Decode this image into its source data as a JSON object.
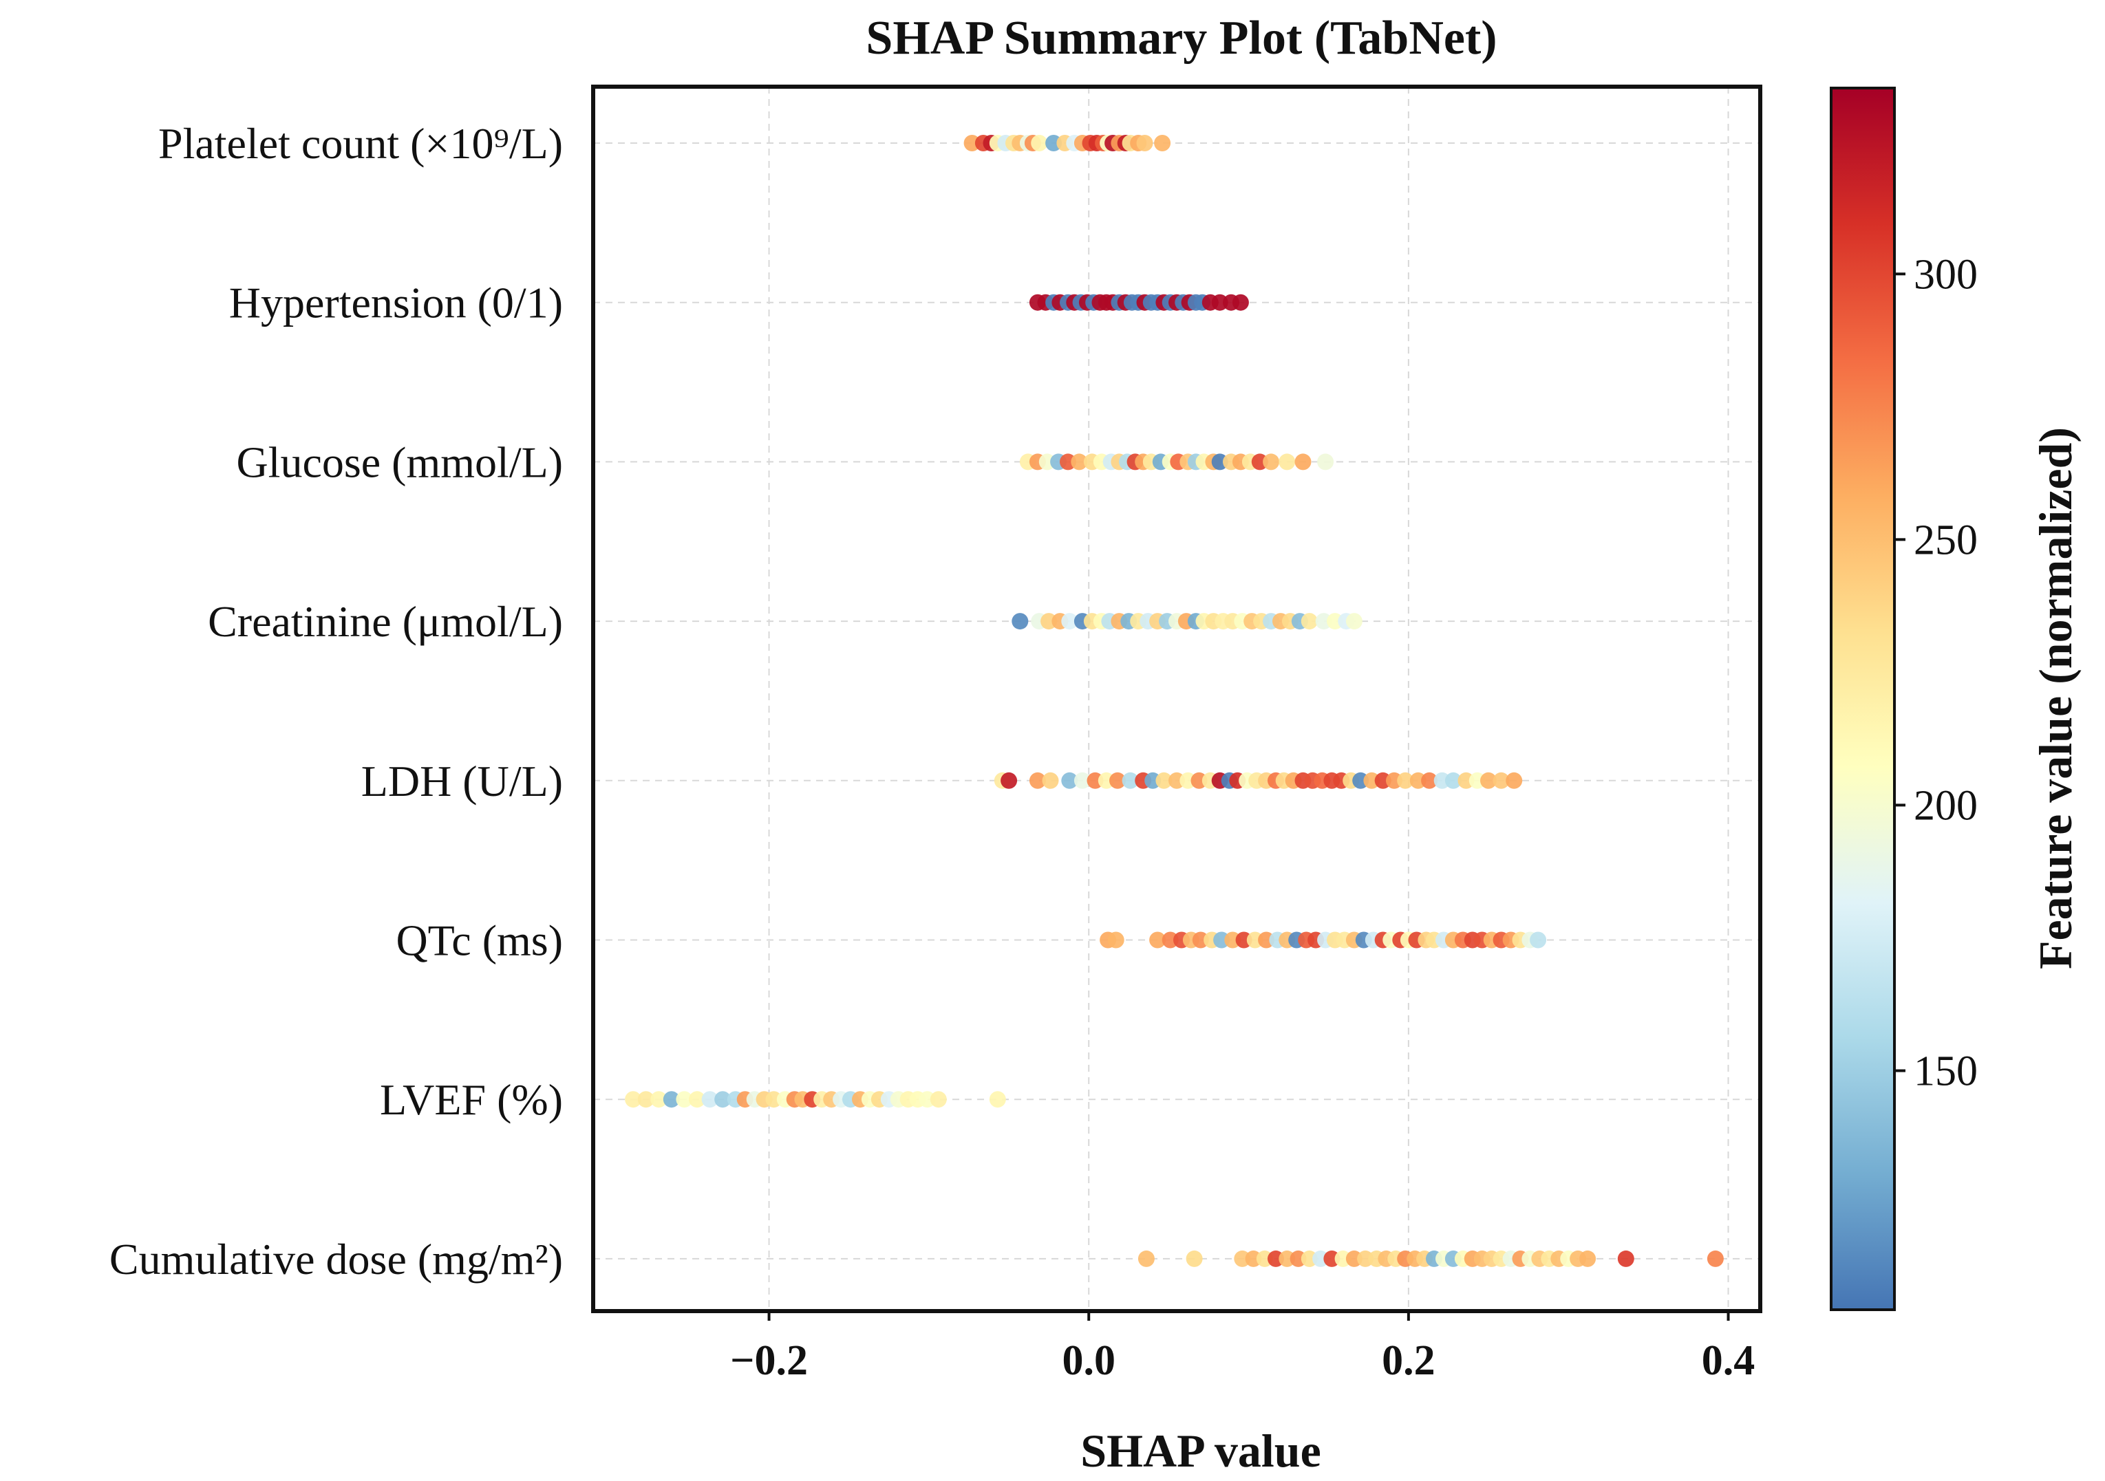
{
  "chart_data": {
    "type": "scatter",
    "subtype": "shap-beeswarm",
    "title": "SHAP Summary Plot (TabNet)",
    "xlabel": "SHAP value",
    "xlim": [
      -0.31,
      0.42
    ],
    "xticks": [
      -0.2,
      0.0,
      0.2,
      0.4
    ],
    "xtick_labels": [
      "−0.2",
      "0.0",
      "0.2",
      "0.4"
    ],
    "grid": true,
    "colorbar": {
      "label": "Feature value (normalized)",
      "range": [
        105,
        335
      ],
      "ticks": [
        150,
        200,
        250,
        300
      ],
      "tick_labels": [
        "150",
        "200",
        "250",
        "300"
      ],
      "colormap": "RdYlBu_r",
      "stops": [
        "#4575b4",
        "#74add1",
        "#abd9e9",
        "#e0f3f8",
        "#ffffbf",
        "#fee090",
        "#fdae61",
        "#f46d43",
        "#d73027",
        "#a50026"
      ]
    },
    "series": [
      {
        "name": "Platelet count (×10⁹/L)",
        "points": [
          [
            -0.073,
            260
          ],
          [
            -0.066,
            300
          ],
          [
            -0.061,
            320
          ],
          [
            -0.057,
            210
          ],
          [
            -0.052,
            175
          ],
          [
            -0.047,
            230
          ],
          [
            -0.043,
            250
          ],
          [
            -0.038,
            190
          ],
          [
            -0.035,
            270
          ],
          [
            -0.031,
            215
          ],
          [
            -0.022,
            130
          ],
          [
            -0.015,
            240
          ],
          [
            -0.009,
            180
          ],
          [
            -0.004,
            260
          ],
          [
            0.001,
            300
          ],
          [
            0.005,
            310
          ],
          [
            0.009,
            290
          ],
          [
            0.012,
            205
          ],
          [
            0.015,
            325
          ],
          [
            0.019,
            265
          ],
          [
            0.023,
            320
          ],
          [
            0.026,
            230
          ],
          [
            0.031,
            260
          ],
          [
            0.035,
            245
          ],
          [
            0.046,
            255
          ]
        ]
      },
      {
        "name": "Hypertension (0/1)",
        "points": [
          [
            -0.032,
            330
          ],
          [
            -0.027,
            330
          ],
          [
            -0.022,
            110
          ],
          [
            -0.018,
            330
          ],
          [
            -0.013,
            110
          ],
          [
            -0.009,
            330
          ],
          [
            -0.005,
            110
          ],
          [
            -0.001,
            330
          ],
          [
            0.003,
            110
          ],
          [
            0.007,
            330
          ],
          [
            0.011,
            330
          ],
          [
            0.015,
            330
          ],
          [
            0.019,
            110
          ],
          [
            0.023,
            330
          ],
          [
            0.027,
            110
          ],
          [
            0.031,
            110
          ],
          [
            0.035,
            330
          ],
          [
            0.039,
            110
          ],
          [
            0.043,
            110
          ],
          [
            0.047,
            330
          ],
          [
            0.051,
            110
          ],
          [
            0.055,
            330
          ],
          [
            0.059,
            110
          ],
          [
            0.063,
            330
          ],
          [
            0.067,
            110
          ],
          [
            0.071,
            110
          ],
          [
            0.076,
            330
          ],
          [
            0.082,
            330
          ],
          [
            0.089,
            330
          ],
          [
            0.095,
            330
          ]
        ]
      },
      {
        "name": "Glucose (mmol/L)",
        "points": [
          [
            -0.038,
            220
          ],
          [
            -0.032,
            265
          ],
          [
            -0.026,
            200
          ],
          [
            -0.019,
            140
          ],
          [
            -0.013,
            290
          ],
          [
            -0.006,
            255
          ],
          [
            0.002,
            235
          ],
          [
            0.008,
            210
          ],
          [
            0.014,
            175
          ],
          [
            0.019,
            240
          ],
          [
            0.024,
            160
          ],
          [
            0.029,
            300
          ],
          [
            0.034,
            260
          ],
          [
            0.039,
            225
          ],
          [
            0.045,
            130
          ],
          [
            0.051,
            205
          ],
          [
            0.056,
            285
          ],
          [
            0.062,
            245
          ],
          [
            0.067,
            150
          ],
          [
            0.072,
            215
          ],
          [
            0.078,
            255
          ],
          [
            0.082,
            110
          ],
          [
            0.089,
            240
          ],
          [
            0.095,
            260
          ],
          [
            0.101,
            225
          ],
          [
            0.107,
            300
          ],
          [
            0.114,
            250
          ],
          [
            0.124,
            225
          ],
          [
            0.134,
            260
          ],
          [
            0.148,
            195
          ]
        ]
      },
      {
        "name": "Creatinine (μmol/L)",
        "points": [
          [
            -0.043,
            115
          ],
          [
            -0.031,
            190
          ],
          [
            -0.025,
            240
          ],
          [
            -0.018,
            255
          ],
          [
            -0.012,
            180
          ],
          [
            -0.004,
            115
          ],
          [
            0.002,
            230
          ],
          [
            0.008,
            210
          ],
          [
            0.013,
            165
          ],
          [
            0.019,
            255
          ],
          [
            0.025,
            135
          ],
          [
            0.031,
            225
          ],
          [
            0.037,
            175
          ],
          [
            0.043,
            240
          ],
          [
            0.049,
            150
          ],
          [
            0.055,
            195
          ],
          [
            0.061,
            260
          ],
          [
            0.067,
            130
          ],
          [
            0.072,
            215
          ],
          [
            0.078,
            230
          ],
          [
            0.084,
            220
          ],
          [
            0.09,
            225
          ],
          [
            0.096,
            205
          ],
          [
            0.102,
            245
          ],
          [
            0.108,
            230
          ],
          [
            0.114,
            165
          ],
          [
            0.12,
            250
          ],
          [
            0.126,
            235
          ],
          [
            0.132,
            140
          ],
          [
            0.138,
            225
          ],
          [
            0.147,
            190
          ],
          [
            0.154,
            205
          ],
          [
            0.161,
            180
          ],
          [
            0.166,
            200
          ]
        ]
      },
      {
        "name": "LDH (U/L)",
        "points": [
          [
            -0.054,
            225
          ],
          [
            -0.05,
            320
          ],
          [
            -0.032,
            265
          ],
          [
            -0.024,
            240
          ],
          [
            -0.012,
            140
          ],
          [
            -0.004,
            190
          ],
          [
            0.004,
            275
          ],
          [
            0.011,
            215
          ],
          [
            0.018,
            270
          ],
          [
            0.026,
            160
          ],
          [
            0.034,
            300
          ],
          [
            0.04,
            130
          ],
          [
            0.047,
            235
          ],
          [
            0.055,
            250
          ],
          [
            0.062,
            215
          ],
          [
            0.069,
            270
          ],
          [
            0.076,
            225
          ],
          [
            0.082,
            325
          ],
          [
            0.088,
            110
          ],
          [
            0.093,
            310
          ],
          [
            0.099,
            205
          ],
          [
            0.105,
            225
          ],
          [
            0.111,
            240
          ],
          [
            0.117,
            280
          ],
          [
            0.122,
            235
          ],
          [
            0.128,
            260
          ],
          [
            0.134,
            300
          ],
          [
            0.14,
            295
          ],
          [
            0.146,
            285
          ],
          [
            0.152,
            300
          ],
          [
            0.158,
            300
          ],
          [
            0.164,
            235
          ],
          [
            0.17,
            115
          ],
          [
            0.177,
            255
          ],
          [
            0.184,
            300
          ],
          [
            0.191,
            265
          ],
          [
            0.198,
            240
          ],
          [
            0.206,
            255
          ],
          [
            0.213,
            275
          ],
          [
            0.221,
            170
          ],
          [
            0.228,
            160
          ],
          [
            0.236,
            240
          ],
          [
            0.243,
            205
          ],
          [
            0.25,
            255
          ],
          [
            0.258,
            245
          ],
          [
            0.266,
            260
          ]
        ]
      },
      {
        "name": "QTc (ms)",
        "points": [
          [
            0.012,
            260
          ],
          [
            0.017,
            255
          ],
          [
            0.043,
            260
          ],
          [
            0.051,
            275
          ],
          [
            0.058,
            295
          ],
          [
            0.064,
            250
          ],
          [
            0.07,
            270
          ],
          [
            0.077,
            235
          ],
          [
            0.083,
            140
          ],
          [
            0.09,
            255
          ],
          [
            0.097,
            300
          ],
          [
            0.104,
            230
          ],
          [
            0.111,
            265
          ],
          [
            0.118,
            165
          ],
          [
            0.124,
            250
          ],
          [
            0.13,
            115
          ],
          [
            0.136,
            290
          ],
          [
            0.142,
            300
          ],
          [
            0.148,
            175
          ],
          [
            0.154,
            230
          ],
          [
            0.16,
            225
          ],
          [
            0.166,
            250
          ],
          [
            0.172,
            115
          ],
          [
            0.178,
            175
          ],
          [
            0.184,
            300
          ],
          [
            0.189,
            205
          ],
          [
            0.195,
            300
          ],
          [
            0.2,
            210
          ],
          [
            0.205,
            300
          ],
          [
            0.211,
            240
          ],
          [
            0.216,
            230
          ],
          [
            0.222,
            175
          ],
          [
            0.228,
            255
          ],
          [
            0.234,
            280
          ],
          [
            0.24,
            300
          ],
          [
            0.246,
            295
          ],
          [
            0.252,
            255
          ],
          [
            0.258,
            290
          ],
          [
            0.264,
            265
          ],
          [
            0.27,
            230
          ],
          [
            0.276,
            190
          ],
          [
            0.281,
            165
          ]
        ]
      },
      {
        "name": "LVEF (%)",
        "points": [
          [
            -0.285,
            220
          ],
          [
            -0.277,
            225
          ],
          [
            -0.269,
            215
          ],
          [
            -0.261,
            135
          ],
          [
            -0.253,
            205
          ],
          [
            -0.245,
            215
          ],
          [
            -0.237,
            175
          ],
          [
            -0.229,
            150
          ],
          [
            -0.221,
            160
          ],
          [
            -0.215,
            265
          ],
          [
            -0.209,
            190
          ],
          [
            -0.203,
            240
          ],
          [
            -0.197,
            230
          ],
          [
            -0.19,
            205
          ],
          [
            -0.184,
            270
          ],
          [
            -0.179,
            250
          ],
          [
            -0.173,
            300
          ],
          [
            -0.167,
            220
          ],
          [
            -0.161,
            245
          ],
          [
            -0.155,
            185
          ],
          [
            -0.149,
            160
          ],
          [
            -0.143,
            255
          ],
          [
            -0.137,
            205
          ],
          [
            -0.131,
            235
          ],
          [
            -0.125,
            180
          ],
          [
            -0.119,
            200
          ],
          [
            -0.113,
            215
          ],
          [
            -0.107,
            210
          ],
          [
            -0.101,
            205
          ],
          [
            -0.094,
            220
          ],
          [
            -0.057,
            215
          ]
        ]
      },
      {
        "name": "Cumulative dose (mg/m²)",
        "points": [
          [
            0.036,
            250
          ],
          [
            0.066,
            235
          ],
          [
            0.096,
            245
          ],
          [
            0.103,
            255
          ],
          [
            0.11,
            230
          ],
          [
            0.117,
            300
          ],
          [
            0.124,
            250
          ],
          [
            0.131,
            270
          ],
          [
            0.138,
            230
          ],
          [
            0.145,
            175
          ],
          [
            0.152,
            300
          ],
          [
            0.159,
            215
          ],
          [
            0.166,
            260
          ],
          [
            0.173,
            240
          ],
          [
            0.18,
            235
          ],
          [
            0.186,
            250
          ],
          [
            0.192,
            230
          ],
          [
            0.198,
            270
          ],
          [
            0.204,
            255
          ],
          [
            0.21,
            240
          ],
          [
            0.216,
            135
          ],
          [
            0.222,
            200
          ],
          [
            0.228,
            140
          ],
          [
            0.234,
            210
          ],
          [
            0.24,
            260
          ],
          [
            0.246,
            250
          ],
          [
            0.252,
            240
          ],
          [
            0.258,
            225
          ],
          [
            0.264,
            190
          ],
          [
            0.27,
            265
          ],
          [
            0.276,
            200
          ],
          [
            0.282,
            245
          ],
          [
            0.288,
            225
          ],
          [
            0.294,
            250
          ],
          [
            0.3,
            205
          ],
          [
            0.306,
            250
          ],
          [
            0.312,
            255
          ],
          [
            0.336,
            305
          ],
          [
            0.392,
            275
          ]
        ]
      }
    ]
  }
}
